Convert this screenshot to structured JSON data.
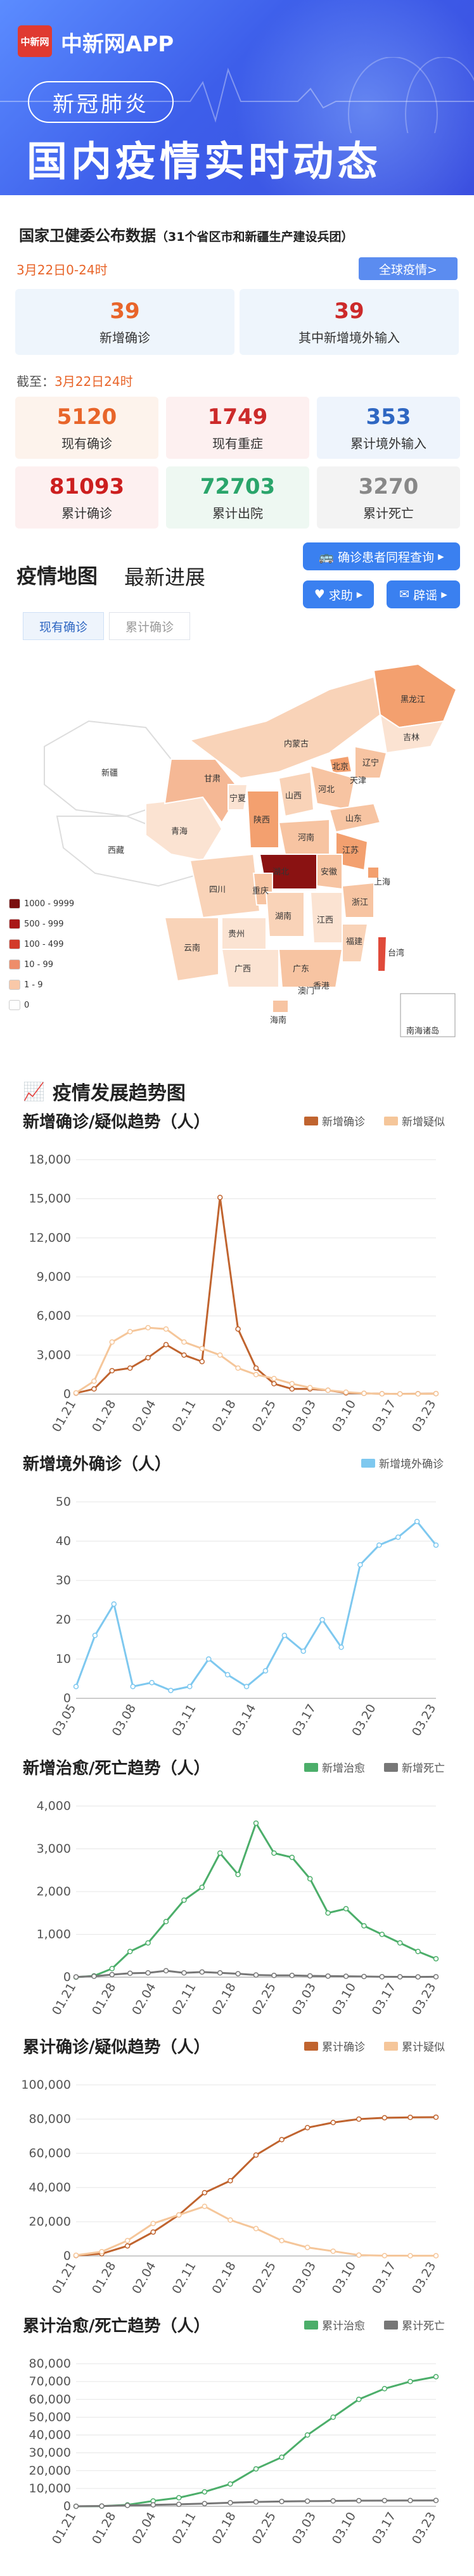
{
  "header": {
    "logo_text": "中新网",
    "app_name": "中新网APP",
    "tag": "新冠肺炎",
    "headline": "国内疫情实时动态"
  },
  "daily": {
    "title": "国家卫健委公布数据",
    "subtitle": "（31个省区市和新疆生产建设兵团）",
    "date": "3月22日0-24时",
    "all_button": "全球疫情>",
    "new_confirmed": {
      "value": "39",
      "label": "新增确诊"
    },
    "new_imported": {
      "value": "39",
      "label": "其中新增境外输入"
    }
  },
  "totals": {
    "as_of_prefix": "截至：",
    "as_of_date": "3月22日24时",
    "items": [
      {
        "value": "5120",
        "label": "现有确诊",
        "color": "#e8652a",
        "bg": "#fdf3ec"
      },
      {
        "value": "1749",
        "label": "现有重症",
        "color": "#cc2a2a",
        "bg": "#fdf0f0"
      },
      {
        "value": "353",
        "label": "累计境外输入",
        "color": "#2f67c2",
        "bg": "#eef4fc"
      },
      {
        "value": "81093",
        "label": "累计确诊",
        "color": "#cc1f1f",
        "bg": "#fdf0f0"
      },
      {
        "value": "72703",
        "label": "累计出院",
        "color": "#2aa56b",
        "bg": "#eef8f2"
      },
      {
        "value": "3270",
        "label": "累计死亡",
        "color": "#888888",
        "bg": "#f3f3f3"
      }
    ]
  },
  "map_section": {
    "title_map": "疫情地图",
    "title_news": "最新进展",
    "btn_trip": "确诊患者同程查询",
    "btn_help": "求助",
    "btn_rumor": "辟谣",
    "tab_current": "现有确诊",
    "tab_total": "累计确诊",
    "legend": [
      {
        "label": "1000 - 9999",
        "color": "#7a0f0f"
      },
      {
        "label": "500 - 999",
        "color": "#a91818"
      },
      {
        "label": "100 - 499",
        "color": "#d23b2a"
      },
      {
        "label": "10 - 99",
        "color": "#ee8d6a"
      },
      {
        "label": "1 - 9",
        "color": "#f9c8a8"
      },
      {
        "label": "0",
        "color": "#ffffff"
      }
    ],
    "provinces": [
      "黑龙江",
      "吉林",
      "辽宁",
      "内蒙古",
      "北京",
      "天津",
      "河北",
      "山西",
      "山东",
      "宁夏",
      "甘肃",
      "青海",
      "新疆",
      "西藏",
      "陕西",
      "河南",
      "江苏",
      "安徽",
      "上海",
      "湖北",
      "四川",
      "重庆",
      "浙江",
      "湖南",
      "江西",
      "贵州",
      "云南",
      "广西",
      "福建",
      "广东",
      "台湾",
      "海南",
      "澳门",
      "香港"
    ],
    "south_sea": "南海诸岛"
  },
  "trend": {
    "section_title": "疫情发展趋势图"
  },
  "charts": [
    {
      "title": "新增确诊/疑似趋势（人）",
      "legend": [
        {
          "name": "新增确诊",
          "color": "#c0642f"
        },
        {
          "name": "新增疑似",
          "color": "#f5c69a"
        }
      ],
      "yticks": [
        "0",
        "3,000",
        "6,000",
        "9,000",
        "12,000",
        "15,000",
        "18,000"
      ],
      "ymax": 18000,
      "xticks": [
        "01.21",
        "01.28",
        "02.04",
        "02.11",
        "02.18",
        "02.25",
        "03.03",
        "03.10",
        "03.17",
        "03.23"
      ]
    },
    {
      "title": "新增境外确诊（人）",
      "legend": [
        {
          "name": "新增境外确诊",
          "color": "#7ec8ef"
        }
      ],
      "yticks": [
        "0",
        "10",
        "20",
        "30",
        "40",
        "50"
      ],
      "ymax": 50,
      "xticks": [
        "03.05",
        "03.08",
        "03.11",
        "03.14",
        "03.17",
        "03.20",
        "03.23"
      ]
    },
    {
      "title": "新增治愈/死亡趋势（人）",
      "legend": [
        {
          "name": "新增治愈",
          "color": "#4cae6a"
        },
        {
          "name": "新增死亡",
          "color": "#777777"
        }
      ],
      "yticks": [
        "0",
        "1,000",
        "2,000",
        "3,000",
        "4,000"
      ],
      "ymax": 4000,
      "xticks": [
        "01.21",
        "01.28",
        "02.04",
        "02.11",
        "02.18",
        "02.25",
        "03.03",
        "03.10",
        "03.17",
        "03.23"
      ]
    },
    {
      "title": "累计确诊/疑似趋势（人）",
      "legend": [
        {
          "name": "累计确诊",
          "color": "#c0642f"
        },
        {
          "name": "累计疑似",
          "color": "#f5c69a"
        }
      ],
      "yticks": [
        "0",
        "20,000",
        "40,000",
        "60,000",
        "80,000",
        "100,000"
      ],
      "ymax": 100000,
      "xticks": [
        "01.21",
        "01.28",
        "02.04",
        "02.11",
        "02.18",
        "02.25",
        "03.03",
        "03.10",
        "03.17",
        "03.23"
      ]
    },
    {
      "title": "累计治愈/死亡趋势（人）",
      "legend": [
        {
          "name": "累计治愈",
          "color": "#4cae6a"
        },
        {
          "name": "累计死亡",
          "color": "#777777"
        }
      ],
      "yticks": [
        "0",
        "10,000",
        "20,000",
        "30,000",
        "40,000",
        "50,000",
        "60,000",
        "70,000",
        "80,000"
      ],
      "ymax": 80000,
      "xticks": [
        "01.21",
        "01.28",
        "02.04",
        "02.11",
        "02.18",
        "02.25",
        "03.03",
        "03.10",
        "03.17",
        "03.23"
      ]
    }
  ],
  "chart_data": [
    {
      "type": "line",
      "x": [
        "01.21",
        "01.24",
        "01.27",
        "01.30",
        "02.02",
        "02.05",
        "02.08",
        "02.11",
        "02.12",
        "02.13",
        "02.16",
        "02.19",
        "02.22",
        "02.25",
        "02.28",
        "03.03",
        "03.07",
        "03.11",
        "03.15",
        "03.19",
        "03.23"
      ],
      "series": [
        {
          "name": "新增确诊",
          "values": [
            80,
            400,
            1800,
            2000,
            2800,
            3800,
            3000,
            2500,
            15100,
            5000,
            2000,
            800,
            400,
            400,
            300,
            100,
            60,
            30,
            20,
            30,
            40
          ]
        },
        {
          "name": "新增疑似",
          "values": [
            100,
            1000,
            4000,
            4800,
            5100,
            5000,
            4000,
            3500,
            3000,
            2000,
            1500,
            1200,
            800,
            500,
            300,
            150,
            60,
            30,
            20,
            20,
            40
          ]
        }
      ]
    },
    {
      "type": "line",
      "x": [
        "03.04",
        "03.05",
        "03.06",
        "03.07",
        "03.08",
        "03.09",
        "03.10",
        "03.11",
        "03.12",
        "03.13",
        "03.14",
        "03.15",
        "03.16",
        "03.17",
        "03.18",
        "03.19",
        "03.20",
        "03.21",
        "03.22",
        "03.23"
      ],
      "series": [
        {
          "name": "新增境外确诊",
          "values": [
            3,
            16,
            24,
            3,
            4,
            2,
            3,
            10,
            6,
            3,
            7,
            16,
            12,
            20,
            13,
            34,
            39,
            41,
            45,
            39
          ]
        }
      ]
    },
    {
      "type": "line",
      "x": [
        "01.21",
        "01.28",
        "02.04",
        "02.08",
        "02.11",
        "02.14",
        "02.17",
        "02.20",
        "02.22",
        "02.23",
        "02.25",
        "02.27",
        "03.01",
        "03.03",
        "03.05",
        "03.08",
        "03.11",
        "03.14",
        "03.17",
        "03.20",
        "03.23"
      ],
      "series": [
        {
          "name": "新增治愈",
          "values": [
            0,
            30,
            200,
            600,
            800,
            1300,
            1800,
            2100,
            2900,
            2400,
            3600,
            2900,
            2800,
            2300,
            1500,
            1600,
            1200,
            1000,
            800,
            600,
            430
          ]
        },
        {
          "name": "新增死亡",
          "values": [
            5,
            20,
            60,
            90,
            100,
            150,
            100,
            120,
            100,
            80,
            50,
            40,
            40,
            30,
            25,
            20,
            15,
            10,
            8,
            6,
            9
          ]
        }
      ]
    },
    {
      "type": "line",
      "x": [
        "01.21",
        "01.24",
        "01.28",
        "02.01",
        "02.04",
        "02.08",
        "02.11",
        "02.12",
        "02.16",
        "02.20",
        "02.25",
        "03.03",
        "03.10",
        "03.17",
        "03.23"
      ],
      "series": [
        {
          "name": "累计确诊",
          "values": [
            300,
            1300,
            5900,
            14000,
            24000,
            37000,
            44000,
            59000,
            68000,
            75000,
            78000,
            80000,
            80800,
            81000,
            81093
          ]
        },
        {
          "name": "累计疑似",
          "values": [
            400,
            2500,
            9000,
            19000,
            24000,
            29000,
            21000,
            16000,
            9000,
            5000,
            2800,
            500,
            200,
            150,
            130
          ]
        }
      ]
    },
    {
      "type": "line",
      "x": [
        "01.21",
        "01.28",
        "02.04",
        "02.08",
        "02.11",
        "02.14",
        "02.18",
        "02.22",
        "02.25",
        "03.01",
        "03.05",
        "03.10",
        "03.15",
        "03.19",
        "03.23"
      ],
      "series": [
        {
          "name": "累计治愈",
          "values": [
            0,
            100,
            800,
            3000,
            4800,
            8100,
            12500,
            21000,
            27500,
            40000,
            50000,
            60000,
            66000,
            70000,
            72703
          ]
        },
        {
          "name": "累计死亡",
          "values": [
            9,
            130,
            490,
            810,
            1110,
            1520,
            2000,
            2440,
            2700,
            2870,
            3010,
            3140,
            3210,
            3250,
            3270
          ]
        }
      ]
    }
  ]
}
